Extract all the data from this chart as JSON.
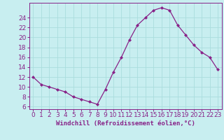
{
  "x": [
    0,
    1,
    2,
    3,
    4,
    5,
    6,
    7,
    8,
    9,
    10,
    11,
    12,
    13,
    14,
    15,
    16,
    17,
    18,
    19,
    20,
    21,
    22,
    23
  ],
  "y": [
    12,
    10.5,
    10,
    9.5,
    9,
    8,
    7.5,
    7,
    6.5,
    9.5,
    13,
    16,
    19.5,
    22.5,
    24,
    25.5,
    26,
    25.5,
    22.5,
    20.5,
    18.5,
    17,
    16,
    13.5
  ],
  "line_color": "#882288",
  "marker_color": "#882288",
  "bg_color": "#c8eef0",
  "grid_color": "#aadddd",
  "xlabel": "Windchill (Refroidissement éolien,°C)",
  "xlabel_color": "#882288",
  "tick_color": "#882288",
  "ylim": [
    5.5,
    27
  ],
  "yticks": [
    6,
    8,
    10,
    12,
    14,
    16,
    18,
    20,
    22,
    24
  ],
  "xlim": [
    -0.5,
    23.5
  ],
  "font_size": 6.5
}
